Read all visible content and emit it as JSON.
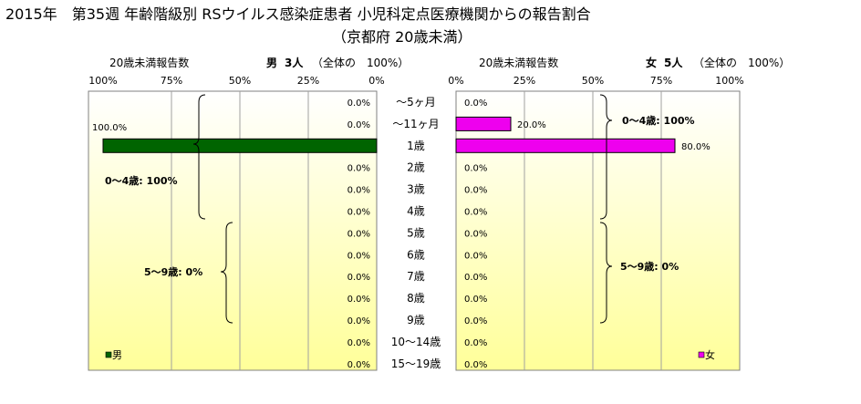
{
  "title": {
    "line1": "2015年　第35週 年齢階級別 RSウイルス感染症患者 小児科定点医療機関からの報告割合",
    "line2": "（京都府 20歳未満）"
  },
  "left_panel": {
    "subtitle": "20歳未満報告数",
    "sex_label": "男",
    "count_label": "3人",
    "total_label": "（全体の　100%）",
    "legend": "男",
    "bracket_upper": "0～4歳: 100%",
    "bracket_lower": "5～9歳: 0%"
  },
  "right_panel": {
    "subtitle": "20歳未満報告数",
    "sex_label": "女",
    "count_label": "5人",
    "total_label": "（全体の　100%）",
    "legend": "女",
    "bracket_upper": "0～4歳: 100%",
    "bracket_lower": "5～9歳: 0%"
  },
  "chart_data": {
    "type": "bar",
    "orientation": "horizontal-pyramid",
    "categories": [
      "～5ヶ月",
      "～11ヶ月",
      "1歳",
      "2歳",
      "3歳",
      "4歳",
      "5歳",
      "6歳",
      "7歳",
      "8歳",
      "9歳",
      "10～14歳",
      "15～19歳"
    ],
    "series": [
      {
        "name": "男",
        "color": "#006400",
        "values": [
          0,
          0,
          100,
          0,
          0,
          0,
          0,
          0,
          0,
          0,
          0,
          0,
          0
        ],
        "labels": [
          "0.0%",
          "0.0%",
          "100.0%",
          "0.0%",
          "0.0%",
          "0.0%",
          "0.0%",
          "0.0%",
          "0.0%",
          "0.0%",
          "0.0%",
          "0.0%",
          "0.0%"
        ]
      },
      {
        "name": "女",
        "color": "#ee00ee",
        "values": [
          0,
          20,
          80,
          0,
          0,
          0,
          0,
          0,
          0,
          0,
          0,
          0,
          0
        ],
        "labels": [
          "0.0%",
          "20.0%",
          "80.0%",
          "0.0%",
          "0.0%",
          "0.0%",
          "0.0%",
          "0.0%",
          "0.0%",
          "0.0%",
          "0.0%",
          "0.0%",
          "0.0%"
        ]
      }
    ],
    "left_ticks": [
      "100%",
      "75%",
      "50%",
      "25%",
      "0%"
    ],
    "right_ticks": [
      "0%",
      "25%",
      "50%",
      "75%",
      "100%"
    ],
    "xlim": [
      0,
      100
    ],
    "grid": true,
    "background": "light-yellow gradient"
  }
}
